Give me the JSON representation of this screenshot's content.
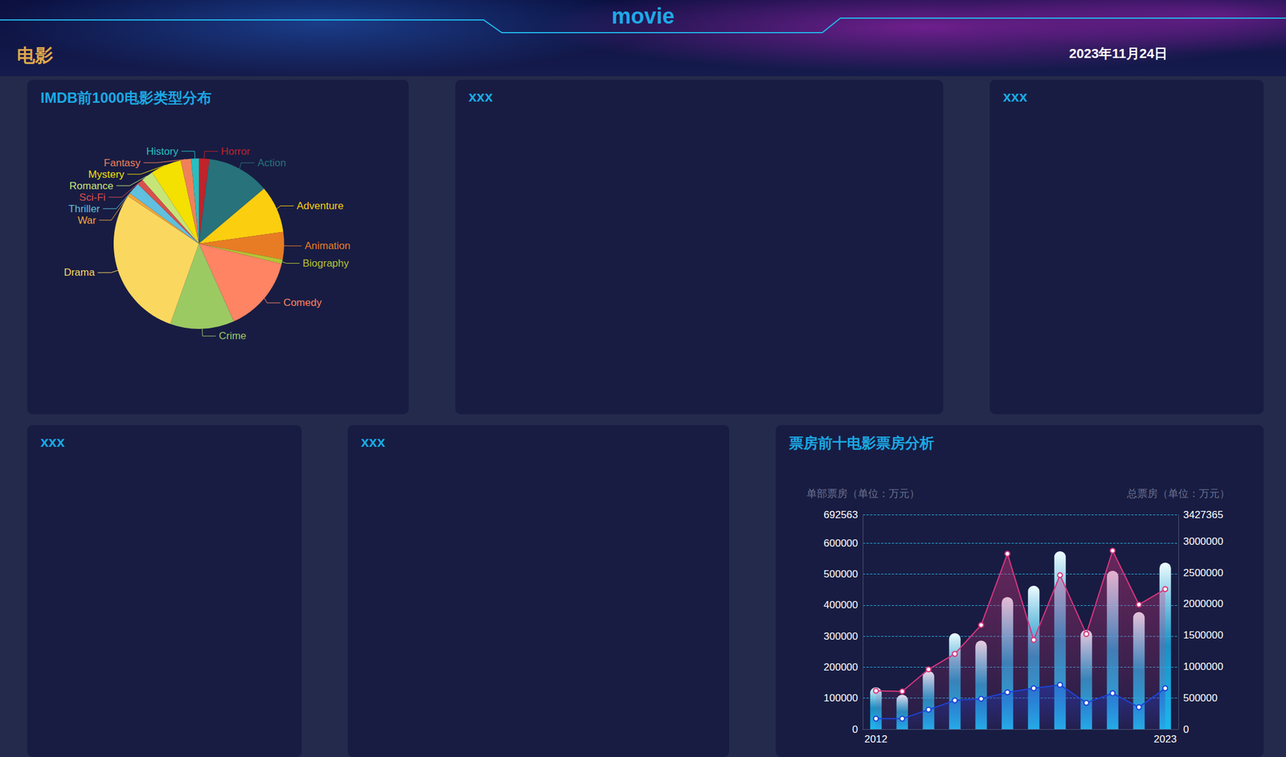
{
  "page": {
    "title": "movie",
    "subtitle": "电影",
    "date": "2023年11月24日",
    "empty_panels": [
      "xxx",
      "xxx",
      "xxx",
      "xxx"
    ]
  },
  "chart_data": [
    {
      "type": "pie",
      "title": "IMDB前1000电影类型分布",
      "categories": [
        "Horror",
        "Action",
        "Adventure",
        "Animation",
        "Biography",
        "Comedy",
        "Crime",
        "Drama",
        "War",
        "Thriller",
        "Sci-Fi",
        "Romance",
        "Mystery",
        "Fantasy",
        "History"
      ],
      "values": [
        19,
        114,
        86,
        50,
        8,
        139,
        117,
        278,
        6,
        22,
        11,
        22,
        56,
        19,
        14
      ],
      "colors": [
        "#C1232B",
        "#27727B",
        "#FCCE10",
        "#E87C25",
        "#B5C334",
        "#FE8463",
        "#9BCA63",
        "#FAD860",
        "#F3A43B",
        "#60C0DD",
        "#D7504B",
        "#C6E579",
        "#F4E001",
        "#F0805A",
        "#26C0C0"
      ]
    },
    {
      "type": "bar",
      "title": "票房前十电影票房分析",
      "categories": [
        "2012",
        null,
        null,
        null,
        null,
        null,
        null,
        null,
        null,
        null,
        null,
        "2023"
      ],
      "y_label": "单部票房（单位：万元）",
      "y2_label": "总票房（单位：万元）",
      "ylim": [
        0,
        692563
      ],
      "yticks": [
        0,
        100000,
        200000,
        300000,
        400000,
        500000,
        600000,
        692563
      ],
      "y2lim": [
        0,
        3427365
      ],
      "y2ticks": [
        0,
        500000,
        1000000,
        1500000,
        2000000,
        2500000,
        3000000,
        3427365
      ],
      "grid": true,
      "series": [
        {
          "type": "bar",
          "axis": "y2",
          "color": "#1bb8ef",
          "values": [
            668000,
            550000,
            930000,
            1533000,
            1415000,
            2110000,
            2290000,
            2840000,
            1585000,
            2530000,
            1870000,
            2660000
          ]
        },
        {
          "type": "line",
          "color": "#d6367f",
          "marker": "circle",
          "values": [
            124000,
            122000,
            193000,
            243000,
            336000,
            566000,
            288000,
            497000,
            307000,
            576000,
            402000,
            452000
          ]
        },
        {
          "type": "line",
          "color": "#1d43d8",
          "marker": "circle",
          "values": [
            34000,
            34000,
            63000,
            93000,
            98000,
            119000,
            132000,
            143000,
            85000,
            116000,
            71000,
            132000
          ]
        }
      ]
    }
  ]
}
